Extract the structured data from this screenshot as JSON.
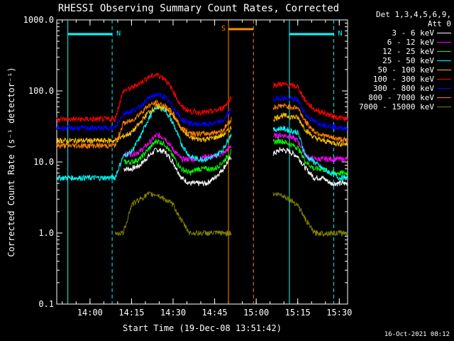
{
  "chart_data": {
    "type": "line",
    "title": "RHESSI Observing Summary Count Rates, Corrected",
    "xlabel": "Start Time (19-Dec-08 13:51:42)",
    "ylabel": "Corrected Count Rate (s⁻¹ detector⁻¹)",
    "yscale": "log",
    "ylim": [
      0.1,
      1000
    ],
    "xlim_minutes": [
      13.8,
      15.55
    ],
    "x_ticks": [
      "14:00",
      "14:15",
      "14:30",
      "14:45",
      "15:00",
      "15:15",
      "15:30"
    ],
    "y_ticks": [
      "0.1",
      "1.0",
      "10.0",
      "100.0",
      "1000.0"
    ],
    "legend_title": "Det 1,3,4,5,6,9,\nAtt 0",
    "legend_position": "top-right, outside plot",
    "timestamp": "16-Oct-2021 08:12",
    "markers": [
      {
        "label": "N",
        "color": "#00ffff",
        "style": "dashed",
        "start": "13:52",
        "end": "14:08"
      },
      {
        "label": "N",
        "color": "#00ffff",
        "style": "dashed",
        "start": "15:12",
        "end": "15:28"
      },
      {
        "label": "S",
        "color": "#ff8c00",
        "style": "dashed",
        "start": "14:50",
        "end": "14:59"
      }
    ],
    "data_gap": [
      "14:50",
      "15:00"
    ],
    "x_minutes": [
      13.8,
      14.0,
      14.05,
      14.1,
      14.15,
      14.2,
      14.25,
      14.3,
      14.35,
      14.4,
      14.45,
      14.5,
      14.55,
      14.6,
      14.65,
      14.7,
      14.75,
      14.8,
      14.85,
      14.9,
      14.95,
      15.0,
      15.05,
      15.1,
      15.15,
      15.2,
      15.25,
      15.3,
      15.35,
      15.4,
      15.45,
      15.5,
      15.55
    ],
    "series": [
      {
        "name": "3 - 6 keV",
        "color": "#ffffff",
        "values": [
          null,
          null,
          null,
          null,
          null,
          8,
          8,
          9,
          12,
          15,
          14,
          10,
          6,
          5,
          5,
          5,
          6,
          8,
          12,
          null,
          null,
          null,
          null,
          13,
          15,
          14,
          12,
          8,
          6,
          6,
          5,
          5,
          5
        ]
      },
      {
        "name": "6 - 12 keV",
        "color": "#ff00ff",
        "values": [
          null,
          null,
          null,
          null,
          null,
          13,
          13,
          14,
          18,
          24,
          22,
          15,
          11,
          11,
          11,
          12,
          12,
          13,
          17,
          null,
          null,
          null,
          null,
          23,
          24,
          23,
          20,
          12,
          11,
          11,
          11,
          11,
          11
        ]
      },
      {
        "name": "12 - 25 keV",
        "color": "#00ff00",
        "values": [
          null,
          null,
          null,
          null,
          null,
          10,
          10,
          11,
          15,
          20,
          18,
          12,
          8,
          7,
          8,
          8,
          8,
          10,
          14,
          null,
          null,
          null,
          null,
          19,
          20,
          18,
          16,
          10,
          8,
          8,
          7,
          7,
          7
        ]
      },
      {
        "name": "25 - 50 keV",
        "color": "#00ffff",
        "values": [
          6,
          6,
          6,
          6,
          6,
          12,
          14,
          22,
          40,
          60,
          55,
          35,
          18,
          12,
          11,
          11,
          12,
          15,
          25,
          null,
          null,
          null,
          null,
          28,
          30,
          28,
          26,
          12,
          10,
          8,
          7,
          6,
          6
        ]
      },
      {
        "name": "50 - 100 keV",
        "color": "#ffc000",
        "values": [
          20,
          20,
          20,
          20,
          20,
          23,
          26,
          35,
          50,
          60,
          58,
          45,
          30,
          22,
          21,
          21,
          22,
          24,
          30,
          null,
          null,
          null,
          null,
          40,
          45,
          44,
          42,
          28,
          22,
          20,
          19,
          18,
          18
        ]
      },
      {
        "name": "100 - 300 keV",
        "color": "#ff0000",
        "values": [
          40,
          40,
          40,
          40,
          40,
          100,
          110,
          130,
          155,
          170,
          150,
          100,
          60,
          52,
          50,
          50,
          52,
          58,
          80,
          null,
          null,
          null,
          null,
          120,
          125,
          120,
          115,
          70,
          55,
          50,
          45,
          42,
          40
        ]
      },
      {
        "name": "300 - 800 keV",
        "color": "#0000ff",
        "values": [
          30,
          30,
          30,
          30,
          30,
          48,
          52,
          60,
          78,
          90,
          82,
          60,
          40,
          35,
          34,
          34,
          35,
          38,
          55,
          null,
          null,
          null,
          null,
          75,
          80,
          78,
          75,
          45,
          37,
          34,
          32,
          30,
          30
        ]
      },
      {
        "name": "800 - 7000 keV",
        "color": "#ff7f00",
        "values": [
          17,
          17,
          17,
          17,
          17,
          35,
          38,
          48,
          62,
          68,
          62,
          48,
          30,
          26,
          25,
          25,
          26,
          28,
          40,
          null,
          null,
          null,
          null,
          58,
          62,
          60,
          58,
          36,
          27,
          24,
          22,
          21,
          20
        ]
      },
      {
        "name": "7000 - 15000 keV",
        "color": "#808000",
        "values": [
          null,
          null,
          null,
          null,
          1,
          1,
          2.5,
          3,
          3.5,
          3.5,
          3,
          2.5,
          1.5,
          1,
          1,
          1,
          1,
          1,
          1,
          null,
          null,
          null,
          null,
          3.5,
          3.5,
          3,
          2.5,
          1.5,
          1,
          1,
          1,
          1,
          1
        ]
      }
    ]
  }
}
